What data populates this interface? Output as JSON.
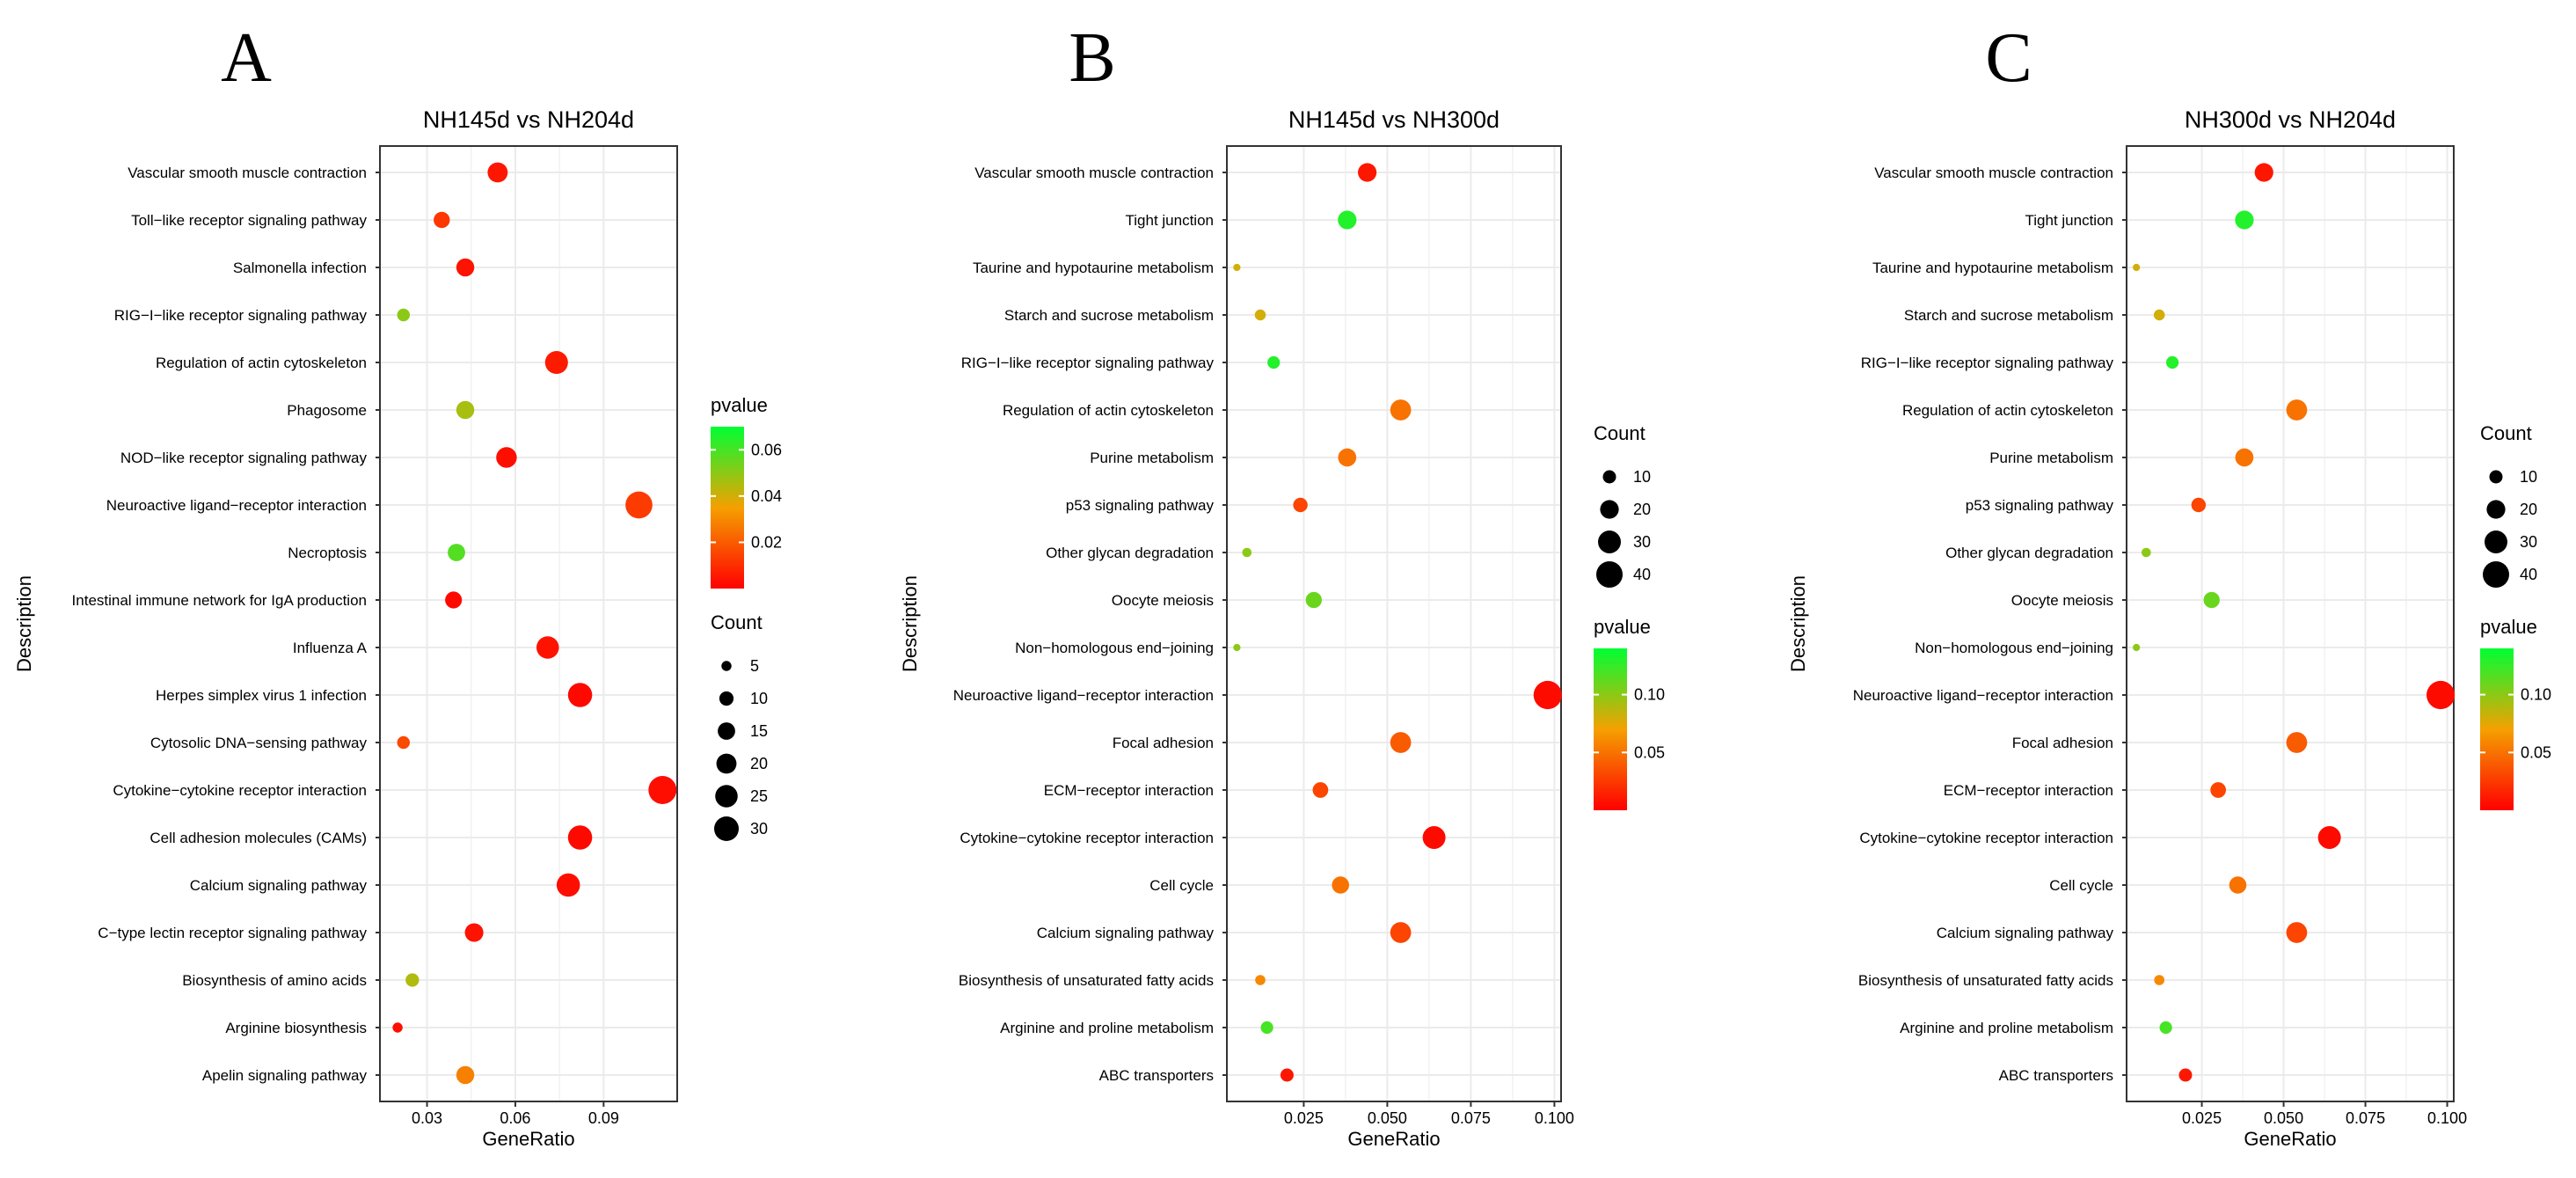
{
  "figure": {
    "colors": {
      "low_p": "#ff0000",
      "mid_p": "#f5a000",
      "high_p": "#00ff33",
      "panel_border": "#333333",
      "grid": "#ebebeb",
      "point": "#000000"
    }
  },
  "chart_data": [
    {
      "type": "scatter",
      "panel_label": "A",
      "title": "NH145d vs NH204d",
      "xlabel": "GeneRatio",
      "ylabel": "Description",
      "xlim": [
        0.014,
        0.115
      ],
      "xticks": [
        0.03,
        0.06,
        0.09
      ],
      "xtick_labels": [
        "0.03",
        "0.06",
        "0.09"
      ],
      "color_legend": {
        "title": "pvalue",
        "range": [
          0.0,
          0.07
        ],
        "ticks": [
          0.02,
          0.04,
          0.06
        ],
        "tick_labels": [
          "0.02",
          "0.04",
          "0.06"
        ],
        "position": "right-top"
      },
      "size_legend": {
        "title": "Count",
        "values": [
          5,
          10,
          15,
          20,
          25,
          30
        ],
        "labels": [
          "5",
          "10",
          "15",
          "20",
          "25",
          "30"
        ],
        "position": "right-bottom"
      },
      "points": [
        {
          "description": "Vascular smooth muscle contraction",
          "gene_ratio": 0.054,
          "count": 20,
          "pvalue": 0.005
        },
        {
          "description": "Toll−like receptor signaling pathway",
          "gene_ratio": 0.035,
          "count": 13,
          "pvalue": 0.012
        },
        {
          "description": "Salmonella infection",
          "gene_ratio": 0.043,
          "count": 16,
          "pvalue": 0.004
        },
        {
          "description": "RIG−I−like receptor signaling pathway",
          "gene_ratio": 0.022,
          "count": 8,
          "pvalue": 0.05
        },
        {
          "description": "Regulation of actin cytoskeleton",
          "gene_ratio": 0.074,
          "count": 26,
          "pvalue": 0.006
        },
        {
          "description": "Phagosome",
          "gene_ratio": 0.043,
          "count": 16,
          "pvalue": 0.046
        },
        {
          "description": "NOD−like receptor signaling pathway",
          "gene_ratio": 0.057,
          "count": 21,
          "pvalue": 0.003
        },
        {
          "description": "Neuroactive ligand−receptor interaction",
          "gene_ratio": 0.102,
          "count": 36,
          "pvalue": 0.013
        },
        {
          "description": "Necroptosis",
          "gene_ratio": 0.04,
          "count": 15,
          "pvalue": 0.058
        },
        {
          "description": "Intestinal immune network for IgA production",
          "gene_ratio": 0.039,
          "count": 14,
          "pvalue": 0.002
        },
        {
          "description": "Influenza A",
          "gene_ratio": 0.071,
          "count": 25,
          "pvalue": 0.004
        },
        {
          "description": "Herpes simplex virus 1 infection",
          "gene_ratio": 0.082,
          "count": 29,
          "pvalue": 0.002
        },
        {
          "description": "Cytosolic DNA−sensing pathway",
          "gene_ratio": 0.022,
          "count": 8,
          "pvalue": 0.016
        },
        {
          "description": "Cytokine−cytokine receptor interaction",
          "gene_ratio": 0.11,
          "count": 39,
          "pvalue": 0.003
        },
        {
          "description": "Cell adhesion molecules (CAMs)",
          "gene_ratio": 0.082,
          "count": 29,
          "pvalue": 0.002
        },
        {
          "description": "Calcium signaling pathway",
          "gene_ratio": 0.078,
          "count": 27,
          "pvalue": 0.003
        },
        {
          "description": "C−type lectin receptor signaling pathway",
          "gene_ratio": 0.046,
          "count": 17,
          "pvalue": 0.004
        },
        {
          "description": "Biosynthesis of amino acids",
          "gene_ratio": 0.025,
          "count": 9,
          "pvalue": 0.045
        },
        {
          "description": "Arginine biosynthesis",
          "gene_ratio": 0.02,
          "count": 5,
          "pvalue": 0.003
        },
        {
          "description": "Apelin signaling pathway",
          "gene_ratio": 0.043,
          "count": 16,
          "pvalue": 0.028
        }
      ]
    },
    {
      "type": "scatter",
      "panel_label": "B",
      "title": "NH145d vs NH300d",
      "xlabel": "GeneRatio",
      "ylabel": "Description",
      "xlim": [
        0.002,
        0.102
      ],
      "xticks": [
        0.025,
        0.05,
        0.075,
        0.1
      ],
      "xtick_labels": [
        "0.025",
        "0.050",
        "0.075",
        "0.100"
      ],
      "color_legend": {
        "title": "pvalue",
        "range": [
          0.0,
          0.14
        ],
        "ticks": [
          0.05,
          0.1
        ],
        "tick_labels": [
          "0.05",
          "0.10"
        ],
        "position": "right-bottom"
      },
      "size_legend": {
        "title": "Count",
        "values": [
          10,
          20,
          30,
          40
        ],
        "labels": [
          "10",
          "20",
          "30",
          "40"
        ],
        "position": "right-top"
      },
      "points": [
        {
          "description": "Vascular smooth muscle contraction",
          "gene_ratio": 0.044,
          "count": 20,
          "pvalue": 0.01
        },
        {
          "description": "Tight junction",
          "gene_ratio": 0.038,
          "count": 20,
          "pvalue": 0.13
        },
        {
          "description": "Taurine and hypotaurine metabolism",
          "gene_ratio": 0.005,
          "count": 3,
          "pvalue": 0.08
        },
        {
          "description": "Starch and sucrose metabolism",
          "gene_ratio": 0.012,
          "count": 7,
          "pvalue": 0.08
        },
        {
          "description": "RIG−I−like receptor signaling pathway",
          "gene_ratio": 0.016,
          "count": 9,
          "pvalue": 0.13
        },
        {
          "description": "Regulation of actin cytoskeleton",
          "gene_ratio": 0.054,
          "count": 25,
          "pvalue": 0.05
        },
        {
          "description": "Purine metabolism",
          "gene_ratio": 0.038,
          "count": 19,
          "pvalue": 0.05
        },
        {
          "description": "p53 signaling pathway",
          "gene_ratio": 0.024,
          "count": 12,
          "pvalue": 0.03
        },
        {
          "description": "Other glycan degradation",
          "gene_ratio": 0.008,
          "count": 5,
          "pvalue": 0.1
        },
        {
          "description": "Oocyte meiosis",
          "gene_ratio": 0.028,
          "count": 15,
          "pvalue": 0.11
        },
        {
          "description": "Non−homologous end−joining",
          "gene_ratio": 0.005,
          "count": 3,
          "pvalue": 0.1
        },
        {
          "description": "Neuroactive ligand−receptor interaction",
          "gene_ratio": 0.098,
          "count": 46,
          "pvalue": 0.005
        },
        {
          "description": "Focal adhesion",
          "gene_ratio": 0.054,
          "count": 25,
          "pvalue": 0.04
        },
        {
          "description": "ECM−receptor interaction",
          "gene_ratio": 0.03,
          "count": 14,
          "pvalue": 0.03
        },
        {
          "description": "Cytokine−cytokine receptor interaction",
          "gene_ratio": 0.064,
          "count": 30,
          "pvalue": 0.005
        },
        {
          "description": "Cell cycle",
          "gene_ratio": 0.036,
          "count": 17,
          "pvalue": 0.05
        },
        {
          "description": "Calcium signaling pathway",
          "gene_ratio": 0.054,
          "count": 25,
          "pvalue": 0.03
        },
        {
          "description": "Biosynthesis of unsaturated fatty acids",
          "gene_ratio": 0.012,
          "count": 6,
          "pvalue": 0.06
        },
        {
          "description": "Arginine and proline metabolism",
          "gene_ratio": 0.014,
          "count": 9,
          "pvalue": 0.12
        },
        {
          "description": "ABC transporters",
          "gene_ratio": 0.02,
          "count": 10,
          "pvalue": 0.01
        }
      ]
    },
    {
      "type": "scatter",
      "panel_label": "C",
      "title": "NH300d vs NH204d",
      "xlabel": "GeneRatio",
      "ylabel": "Description",
      "xlim": [
        0.002,
        0.102
      ],
      "xticks": [
        0.025,
        0.05,
        0.075,
        0.1
      ],
      "xtick_labels": [
        "0.025",
        "0.050",
        "0.075",
        "0.100"
      ],
      "color_legend": {
        "title": "pvalue",
        "range": [
          0.0,
          0.14
        ],
        "ticks": [
          0.05,
          0.1
        ],
        "tick_labels": [
          "0.05",
          "0.10"
        ],
        "position": "right-bottom"
      },
      "size_legend": {
        "title": "Count",
        "values": [
          10,
          20,
          30,
          40
        ],
        "labels": [
          "10",
          "20",
          "30",
          "40"
        ],
        "position": "right-top"
      },
      "points": [
        {
          "description": "Vascular smooth muscle contraction",
          "gene_ratio": 0.044,
          "count": 20,
          "pvalue": 0.01
        },
        {
          "description": "Tight junction",
          "gene_ratio": 0.038,
          "count": 20,
          "pvalue": 0.13
        },
        {
          "description": "Taurine and hypotaurine metabolism",
          "gene_ratio": 0.005,
          "count": 3,
          "pvalue": 0.08
        },
        {
          "description": "Starch and sucrose metabolism",
          "gene_ratio": 0.012,
          "count": 7,
          "pvalue": 0.08
        },
        {
          "description": "RIG−I−like receptor signaling pathway",
          "gene_ratio": 0.016,
          "count": 9,
          "pvalue": 0.13
        },
        {
          "description": "Regulation of actin cytoskeleton",
          "gene_ratio": 0.054,
          "count": 25,
          "pvalue": 0.05
        },
        {
          "description": "Purine metabolism",
          "gene_ratio": 0.038,
          "count": 19,
          "pvalue": 0.05
        },
        {
          "description": "p53 signaling pathway",
          "gene_ratio": 0.024,
          "count": 12,
          "pvalue": 0.03
        },
        {
          "description": "Other glycan degradation",
          "gene_ratio": 0.008,
          "count": 5,
          "pvalue": 0.1
        },
        {
          "description": "Oocyte meiosis",
          "gene_ratio": 0.028,
          "count": 15,
          "pvalue": 0.11
        },
        {
          "description": "Non−homologous end−joining",
          "gene_ratio": 0.005,
          "count": 3,
          "pvalue": 0.1
        },
        {
          "description": "Neuroactive ligand−receptor interaction",
          "gene_ratio": 0.098,
          "count": 46,
          "pvalue": 0.005
        },
        {
          "description": "Focal adhesion",
          "gene_ratio": 0.054,
          "count": 25,
          "pvalue": 0.04
        },
        {
          "description": "ECM−receptor interaction",
          "gene_ratio": 0.03,
          "count": 14,
          "pvalue": 0.03
        },
        {
          "description": "Cytokine−cytokine receptor interaction",
          "gene_ratio": 0.064,
          "count": 30,
          "pvalue": 0.005
        },
        {
          "description": "Cell cycle",
          "gene_ratio": 0.036,
          "count": 17,
          "pvalue": 0.05
        },
        {
          "description": "Calcium signaling pathway",
          "gene_ratio": 0.054,
          "count": 25,
          "pvalue": 0.03
        },
        {
          "description": "Biosynthesis of unsaturated fatty acids",
          "gene_ratio": 0.012,
          "count": 6,
          "pvalue": 0.06
        },
        {
          "description": "Arginine and proline metabolism",
          "gene_ratio": 0.014,
          "count": 9,
          "pvalue": 0.12
        },
        {
          "description": "ABC transporters",
          "gene_ratio": 0.02,
          "count": 10,
          "pvalue": 0.01
        }
      ]
    }
  ]
}
